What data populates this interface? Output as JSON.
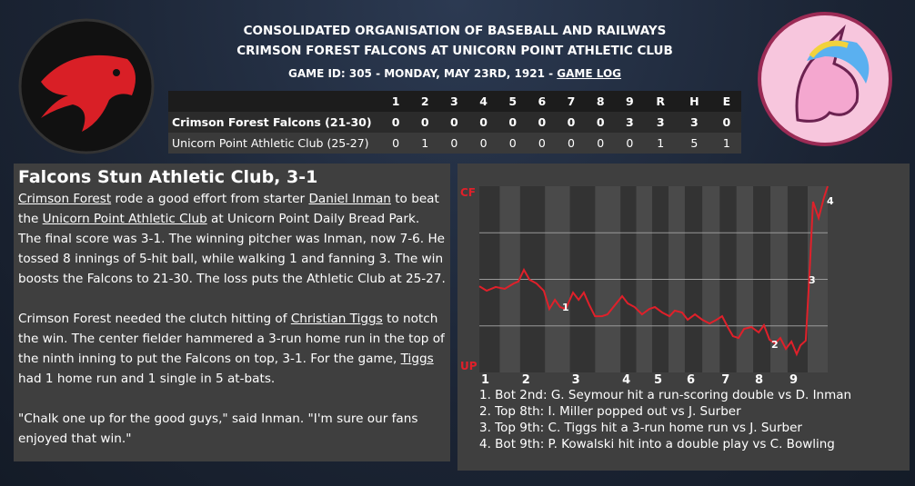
{
  "header": {
    "league": "CONSOLIDATED ORGANISATION OF BASEBALL AND RAILWAYS",
    "matchup": "CRIMSON FOREST FALCONS AT UNICORN POINT ATHLETIC CLUB",
    "game_info": "GAME ID: 305 - MONDAY, MAY 23RD, 1921 - ",
    "game_log_link": "GAME LOG"
  },
  "linescore": {
    "columns": [
      "1",
      "2",
      "3",
      "4",
      "5",
      "6",
      "7",
      "8",
      "9",
      "R",
      "H",
      "E"
    ],
    "rows": [
      {
        "team": "Crimson Forest Falcons (21-30)",
        "cells": [
          0,
          0,
          0,
          0,
          0,
          0,
          0,
          0,
          3,
          3,
          3,
          0
        ]
      },
      {
        "team": "Unicorn Point Athletic Club (25-27)",
        "cells": [
          0,
          1,
          0,
          0,
          0,
          0,
          0,
          0,
          0,
          1,
          5,
          1
        ]
      }
    ]
  },
  "article": {
    "title": "Falcons Stun Athletic Club, 3-1",
    "paragraphs": [
      [
        {
          "text": "Crimson Forest",
          "link": true
        },
        {
          "text": " rode a good effort from starter "
        },
        {
          "text": "Daniel Inman",
          "link": true
        },
        {
          "text": " to beat the "
        },
        {
          "text": "Unicorn Point Athletic Club",
          "link": true
        },
        {
          "text": " at Unicorn Point Daily Bread Park. The final score was 3-1. The winning pitcher was Inman, now 7-6. He tossed 8 innings of 5-hit ball, while walking 1 and fanning 3. The win boosts the Falcons to 21-30. The loss puts the Athletic Club at 25-27."
        }
      ],
      [
        {
          "text": "Crimson Forest needed the clutch hitting of "
        },
        {
          "text": "Christian Tiggs",
          "link": true
        },
        {
          "text": " to notch the win. The center fielder hammered a 3-run home run in the top of the ninth inning to put the Falcons on top, 3-1. For the game, "
        },
        {
          "text": "Tiggs",
          "link": true
        },
        {
          "text": " had 1 home run and 1 single in 5 at-bats."
        }
      ],
      [
        {
          "text": "\"Chalk one up for the good guys,\" said Inman. \"I'm sure our fans enjoyed that win.\""
        }
      ]
    ]
  },
  "chart_data": {
    "type": "line",
    "top_label": "CF",
    "bottom_label": "UP",
    "x": [
      0,
      2.1,
      4.7,
      7.3,
      9.9,
      11.2,
      12.8,
      14.4,
      16.4,
      18.5,
      20.1,
      21.7,
      23.2,
      24.8,
      26.9,
      28.5,
      30.0,
      31.6,
      33.2,
      35.2,
      36.8,
      38.9,
      41.0,
      42.6,
      44.6,
      46.7,
      48.8,
      50.4,
      52.5,
      54.6,
      56.1,
      58.2,
      59.8,
      61.9,
      64.0,
      66.1,
      68.1,
      69.7,
      71.3,
      72.8,
      74.4,
      76.0,
      78.1,
      80.2,
      81.7,
      83.3,
      84.9,
      86.4,
      88.0,
      89.6,
      91.1,
      92.2,
      93.7,
      94.8,
      95.8,
      97.4,
      98.9,
      100
    ],
    "series": [
      {
        "color": "#e0202a",
        "values": [
          46.3,
          43.9,
          45.9,
          44.9,
          47.8,
          48.8,
          55.1,
          49.8,
          47.8,
          43.9,
          34.1,
          39.0,
          35.1,
          34.1,
          42.9,
          39.0,
          42.9,
          36.1,
          30.2,
          30.2,
          31.2,
          36.1,
          41.0,
          37.1,
          35.1,
          31.2,
          34.1,
          35.1,
          32.2,
          30.2,
          33.2,
          32.2,
          28.3,
          31.2,
          28.3,
          26.3,
          28.3,
          30.2,
          24.4,
          19.5,
          18.5,
          23.4,
          24.4,
          21.5,
          25.4,
          17.6,
          15.6,
          18.5,
          12.7,
          16.6,
          9.8,
          14.6,
          17.1,
          53.7,
          91.7,
          82.9,
          93.7,
          100
        ]
      }
    ],
    "xlim": [
      0,
      100
    ],
    "ylim": [
      0,
      100
    ],
    "gridlines": [
      25,
      50,
      75
    ],
    "xticks": [
      {
        "value": 0,
        "label": "1"
      },
      {
        "value": 11.7,
        "label": "2"
      },
      {
        "value": 26,
        "label": "3"
      },
      {
        "value": 40.5,
        "label": "4"
      },
      {
        "value": 49.6,
        "label": "5"
      },
      {
        "value": 59,
        "label": "6"
      },
      {
        "value": 69,
        "label": "7"
      },
      {
        "value": 78.6,
        "label": "8"
      },
      {
        "value": 88.5,
        "label": "9"
      }
    ],
    "markers": [
      "1",
      "2",
      "3",
      "4"
    ],
    "notes": [
      "1. Bot 2nd: G. Seymour hit a run-scoring double vs D. Inman",
      "2. Top 8th: I. Miller popped out vs J. Surber",
      "3. Top 9th: C. Tiggs hit a 3-run home run vs J. Surber",
      "4. Bot 9th: P. Kowalski hit into a double play vs C. Bowling"
    ]
  }
}
